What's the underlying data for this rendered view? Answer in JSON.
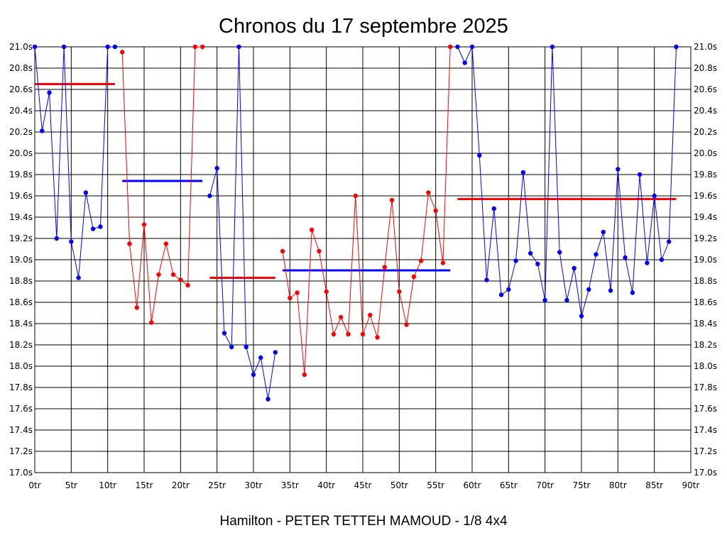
{
  "chart_data": {
    "type": "line",
    "title": "Chronos du 17 septembre 2025",
    "footer": "Hamilton - PETER TETTEH MAMOUD - 1/8 4x4",
    "xlim": [
      0,
      90
    ],
    "ylim": [
      17.0,
      21.0
    ],
    "grid": true,
    "x_ticks": [
      {
        "value": 0,
        "label": "0tr"
      },
      {
        "value": 5,
        "label": "5tr"
      },
      {
        "value": 10,
        "label": "10tr"
      },
      {
        "value": 15,
        "label": "15tr"
      },
      {
        "value": 20,
        "label": "20tr"
      },
      {
        "value": 25,
        "label": "25tr"
      },
      {
        "value": 30,
        "label": "30tr"
      },
      {
        "value": 35,
        "label": "35tr"
      },
      {
        "value": 40,
        "label": "40tr"
      },
      {
        "value": 45,
        "label": "45tr"
      },
      {
        "value": 50,
        "label": "50tr"
      },
      {
        "value": 55,
        "label": "55tr"
      },
      {
        "value": 60,
        "label": "60tr"
      },
      {
        "value": 65,
        "label": "65tr"
      },
      {
        "value": 70,
        "label": "70tr"
      },
      {
        "value": 75,
        "label": "75tr"
      },
      {
        "value": 80,
        "label": "80tr"
      },
      {
        "value": 85,
        "label": "85tr"
      },
      {
        "value": 90,
        "label": "90tr"
      }
    ],
    "y_ticks": [
      {
        "value": 17.0,
        "label": "17.0s"
      },
      {
        "value": 17.2,
        "label": "17.2s"
      },
      {
        "value": 17.4,
        "label": "17.4s"
      },
      {
        "value": 17.6,
        "label": "17.6s"
      },
      {
        "value": 17.8,
        "label": "17.8s"
      },
      {
        "value": 18.0,
        "label": "18.0s"
      },
      {
        "value": 18.2,
        "label": "18.2s"
      },
      {
        "value": 18.4,
        "label": "18.4s"
      },
      {
        "value": 18.6,
        "label": "18.6s"
      },
      {
        "value": 18.8,
        "label": "18.8s"
      },
      {
        "value": 19.0,
        "label": "19.0s"
      },
      {
        "value": 19.2,
        "label": "19.2s"
      },
      {
        "value": 19.4,
        "label": "19.4s"
      },
      {
        "value": 19.6,
        "label": "19.6s"
      },
      {
        "value": 19.8,
        "label": "19.8s"
      },
      {
        "value": 20.0,
        "label": "20.0s"
      },
      {
        "value": 20.2,
        "label": "20.2s"
      },
      {
        "value": 20.4,
        "label": "20.4s"
      },
      {
        "value": 20.6,
        "label": "20.6s"
      },
      {
        "value": 20.8,
        "label": "20.8s"
      },
      {
        "value": 21.0,
        "label": "21.0s"
      }
    ],
    "series": [
      {
        "color": "#0000ff",
        "x": [
          0,
          1,
          2,
          3,
          4,
          5,
          6,
          7,
          8,
          9,
          10,
          11
        ],
        "y": [
          21.0,
          20.21,
          20.57,
          19.2,
          21.0,
          19.17,
          18.83,
          19.63,
          19.29,
          19.31,
          21.0,
          21.0
        ],
        "mean": {
          "value": 20.65,
          "x0": 0,
          "x1": 11,
          "color": "#ff0000"
        }
      },
      {
        "color": "#ff0000",
        "x": [
          12,
          13,
          14,
          15,
          16,
          17,
          18,
          19,
          20,
          21,
          22,
          23
        ],
        "y": [
          20.95,
          19.15,
          18.55,
          19.33,
          18.41,
          18.86,
          19.15,
          18.86,
          18.81,
          18.76,
          21.0,
          21.0
        ],
        "mean": {
          "value": 19.74,
          "x0": 12,
          "x1": 23,
          "color": "#0000ff"
        }
      },
      {
        "color": "#0000ff",
        "x": [
          24,
          25,
          26,
          27,
          28,
          29,
          30,
          31,
          32,
          33
        ],
        "y": [
          19.6,
          19.86,
          18.31,
          18.18,
          21.0,
          18.18,
          17.92,
          18.08,
          17.69,
          18.13
        ],
        "mean": {
          "value": 18.83,
          "x0": 24,
          "x1": 33,
          "color": "#ff0000"
        }
      },
      {
        "color": "#ff0000",
        "x": [
          34,
          35,
          36,
          37,
          38,
          39,
          40,
          41,
          42,
          43,
          44,
          45,
          46,
          47,
          48,
          49,
          50,
          51,
          52,
          53,
          54,
          55,
          56,
          57
        ],
        "y": [
          19.08,
          18.64,
          18.69,
          17.92,
          19.28,
          19.08,
          18.7,
          18.3,
          18.46,
          18.3,
          19.6,
          18.3,
          18.48,
          18.27,
          18.93,
          19.56,
          18.7,
          18.39,
          18.84,
          18.99,
          19.63,
          19.46,
          18.97,
          21.0
        ],
        "mean": {
          "value": 18.9,
          "x0": 34,
          "x1": 57,
          "color": "#0000ff"
        }
      },
      {
        "color": "#0000ff",
        "x": [
          58,
          59,
          60,
          61,
          62,
          63,
          64,
          65,
          66,
          67,
          68,
          69,
          70,
          71,
          72,
          73,
          74,
          75,
          76,
          77,
          78,
          79,
          80,
          81,
          82,
          83,
          84,
          85,
          86,
          87,
          88
        ],
        "y": [
          21.0,
          20.85,
          21.0,
          19.98,
          18.81,
          19.48,
          18.67,
          18.72,
          18.99,
          19.82,
          19.06,
          18.96,
          18.62,
          21.0,
          19.07,
          18.62,
          18.92,
          18.47,
          18.72,
          19.05,
          19.26,
          18.71,
          19.85,
          19.02,
          18.69,
          19.8,
          18.97,
          19.6,
          19.0,
          19.17,
          21.0
        ],
        "mean": {
          "value": 19.57,
          "x0": 58,
          "x1": 88,
          "color": "#ff0000"
        }
      }
    ]
  }
}
